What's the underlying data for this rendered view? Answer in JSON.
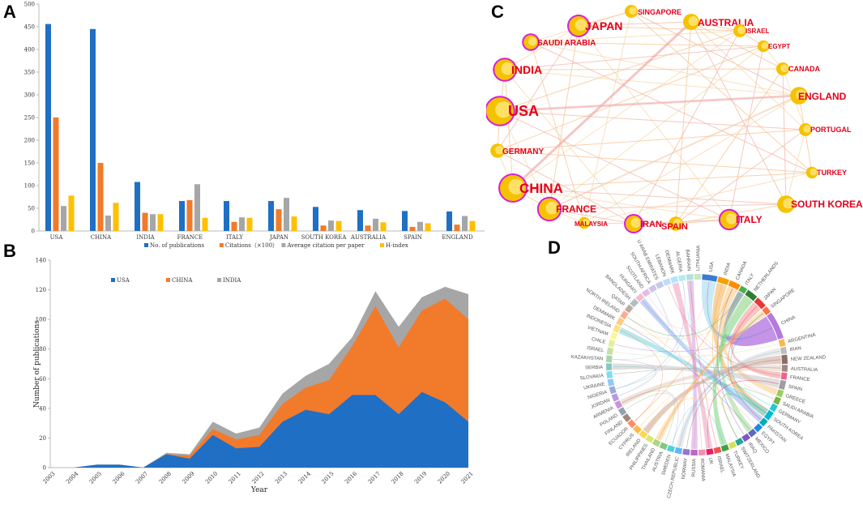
{
  "panels": {
    "A": "A",
    "B": "B",
    "C": "C",
    "D": "D"
  },
  "chart_data": [
    {
      "type": "bar",
      "panel": "A",
      "categories": [
        "USA",
        "CHINA",
        "INDIA",
        "FRANCE",
        "ITALY",
        "JAPAN",
        "SOUTH KOREA",
        "AUSTRALIA",
        "SPAIN",
        "ENGLAND"
      ],
      "series": [
        {
          "name": "No. of publications",
          "color": "#1f6fc5",
          "values": [
            456,
            445,
            108,
            66,
            66,
            66,
            53,
            46,
            44,
            43
          ]
        },
        {
          "name": "Citations（×100）",
          "color": "#f27a2b",
          "values": [
            250,
            150,
            40,
            68,
            20,
            48,
            12,
            12,
            9,
            14
          ]
        },
        {
          "name": "Average citation per paper",
          "color": "#a6a6a6",
          "values": [
            55,
            34,
            37,
            103,
            30,
            73,
            23,
            27,
            20,
            33
          ]
        },
        {
          "name": "H-index",
          "color": "#ffc000",
          "values": [
            78,
            62,
            37,
            29,
            29,
            32,
            22,
            19,
            17,
            22
          ]
        }
      ],
      "ylim": [
        0,
        500
      ],
      "yticks": [
        "0",
        "50",
        "100",
        "150",
        "200",
        "250",
        "300",
        "350",
        "400",
        "450",
        "500"
      ]
    },
    {
      "type": "area",
      "panel": "B",
      "x": [
        "2003",
        "2004",
        "2005",
        "2006",
        "2007",
        "2008",
        "2009",
        "2010",
        "2011",
        "2012",
        "2013",
        "2014",
        "2015",
        "2016",
        "2017",
        "2018",
        "2019",
        "2020",
        "2021"
      ],
      "series": [
        {
          "name": "USA",
          "color": "#1f6fc5",
          "values": [
            0,
            0,
            2,
            2,
            0,
            9,
            6,
            22,
            13,
            14,
            31,
            39,
            36,
            49,
            49,
            36,
            51,
            44,
            31
          ]
        },
        {
          "name": "CHINA",
          "color": "#f27a2b",
          "values": [
            0,
            0,
            0,
            0,
            0,
            0,
            2,
            4,
            6,
            8,
            12,
            15,
            23,
            33,
            60,
            45,
            55,
            70,
            69
          ]
        },
        {
          "name": "INDIA",
          "color": "#a6a6a6",
          "values": [
            0,
            0,
            0,
            0,
            0,
            1,
            1,
            5,
            4,
            5,
            7,
            8,
            11,
            6,
            10,
            14,
            9,
            8,
            17
          ]
        }
      ],
      "ylabel": "Number of publications",
      "xlabel": "Year",
      "ylim": [
        0,
        140
      ],
      "yticks": [
        "0",
        "20",
        "40",
        "60",
        "80",
        "100",
        "120",
        "140"
      ]
    },
    {
      "type": "network",
      "panel": "C",
      "nodes": [
        {
          "name": "SINGAPORE",
          "size": 1
        },
        {
          "name": "JAPAN",
          "size": 2
        },
        {
          "name": "AUSTRALIA",
          "size": 1.5
        },
        {
          "name": "ISRAEL",
          "size": 1
        },
        {
          "name": "SAUDI ARABIA",
          "size": 1.2
        },
        {
          "name": "EGYPT",
          "size": 0.8
        },
        {
          "name": "CANADA",
          "size": 1
        },
        {
          "name": "INDIA",
          "size": 2.2
        },
        {
          "name": "ENGLAND",
          "size": 1.7
        },
        {
          "name": "USA",
          "size": 3.2
        },
        {
          "name": "PORTUGAL",
          "size": 1
        },
        {
          "name": "GERMANY",
          "size": 1.2
        },
        {
          "name": "TURKEY",
          "size": 0.8
        },
        {
          "name": "CHINA",
          "size": 3
        },
        {
          "name": "SOUTH KOREA",
          "size": 1.7
        },
        {
          "name": "FRANCE",
          "size": 2.3
        },
        {
          "name": "MALAYSIA",
          "size": 0.8
        },
        {
          "name": "IRAN",
          "size": 1.5
        },
        {
          "name": "SPAIN",
          "size": 1.2
        },
        {
          "name": "ITALY",
          "size": 1.8
        }
      ]
    },
    {
      "type": "chord",
      "panel": "D",
      "labels": [
        "USA",
        "INDIA",
        "CANADA",
        "ITALY",
        "NETHERLANDS",
        "JAPAN",
        "SINGAPORE",
        "CHINA",
        "ARGENTINA",
        "IRAN",
        "NEW ZEALAND",
        "AUSTRALIA",
        "FRANCE",
        "SPAIN",
        "GREECE",
        "SAUDI ARABIA",
        "GERMANY",
        "SOUTH KOREA",
        "PAKISTAN",
        "EGYPT",
        "MEXICO",
        "IRAQ",
        "SWITZERLAND",
        "TURKEY",
        "MALAYSIA",
        "ISRAEL",
        "UK",
        "ROMANIA",
        "RUSSIA",
        "NORWAY",
        "CZECH REPUBLIC",
        "SWEDEN",
        "AUSTRIA",
        "THAILAND",
        "PHILIPPINES",
        "IRELAND",
        "CYPRUS",
        "ECUADOR",
        "FINLAND",
        "POLAND",
        "ARMENIA",
        "JORDAN",
        "NIGERIA",
        "UKRAINE",
        "SLOVAKIA",
        "SERBIA",
        "KAZAKHSTAN",
        "ISRAEL",
        "CHILE",
        "VIETNAM",
        "INDONESIA",
        "DENMARK",
        "NORTH IRELAND",
        "QATAR",
        "BANGLADESH",
        "HUNGARY",
        "SCOTLAND",
        "SOUTH AFRICA",
        "U ARAB EMIRATES",
        "LEBANON",
        "DENMARK",
        "ALGERIA",
        "BAHRAIN",
        "LITHUANIA"
      ]
    }
  ]
}
